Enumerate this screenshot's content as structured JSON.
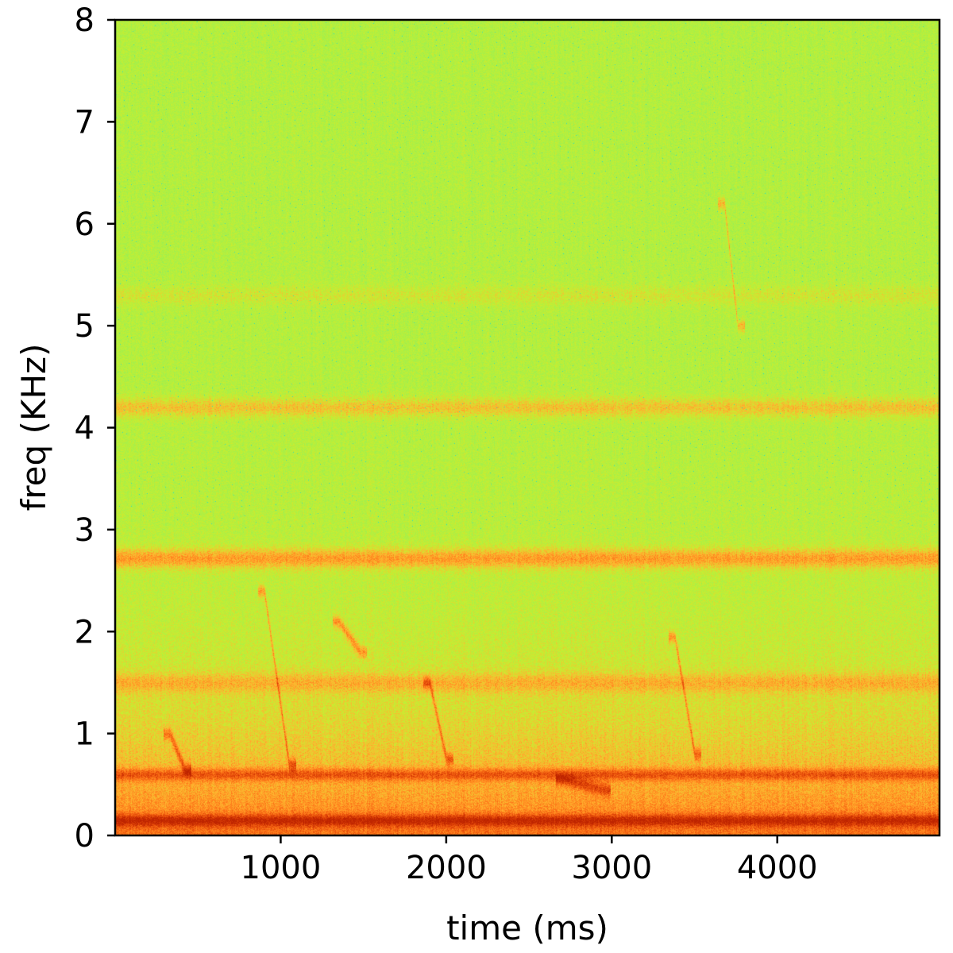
{
  "chart_data": {
    "type": "heatmap",
    "title": "",
    "xlabel": "time (ms)",
    "ylabel": "freq (KHz)",
    "xlim": [
      0,
      4980
    ],
    "ylim": [
      0,
      8
    ],
    "x_ticks": [
      1000,
      2000,
      3000,
      4000
    ],
    "x_tick_labels": [
      "1000",
      "2000",
      "3000",
      "4000"
    ],
    "y_ticks": [
      0,
      1,
      2,
      3,
      4,
      5,
      6,
      7,
      8
    ],
    "y_tick_labels": [
      "0",
      "1",
      "2",
      "3",
      "4",
      "5",
      "6",
      "7",
      "8"
    ],
    "grid": false,
    "colormap": "jet",
    "colors": {
      "high_energy": "#d23200",
      "mid_high": "#ff7a1a",
      "mid": "#ffb530",
      "low_mid": "#c8ee30",
      "low": "#a6f04a",
      "lowest": "#20d8d0"
    },
    "energy_bands_khz": [
      {
        "center": 0.15,
        "level": 1.0
      },
      {
        "center": 0.6,
        "level": 0.9
      },
      {
        "center": 1.5,
        "level": 0.55
      },
      {
        "center": 2.72,
        "level": 0.95
      },
      {
        "center": 4.2,
        "level": 0.7
      },
      {
        "center": 5.3,
        "level": 0.35
      }
    ]
  }
}
